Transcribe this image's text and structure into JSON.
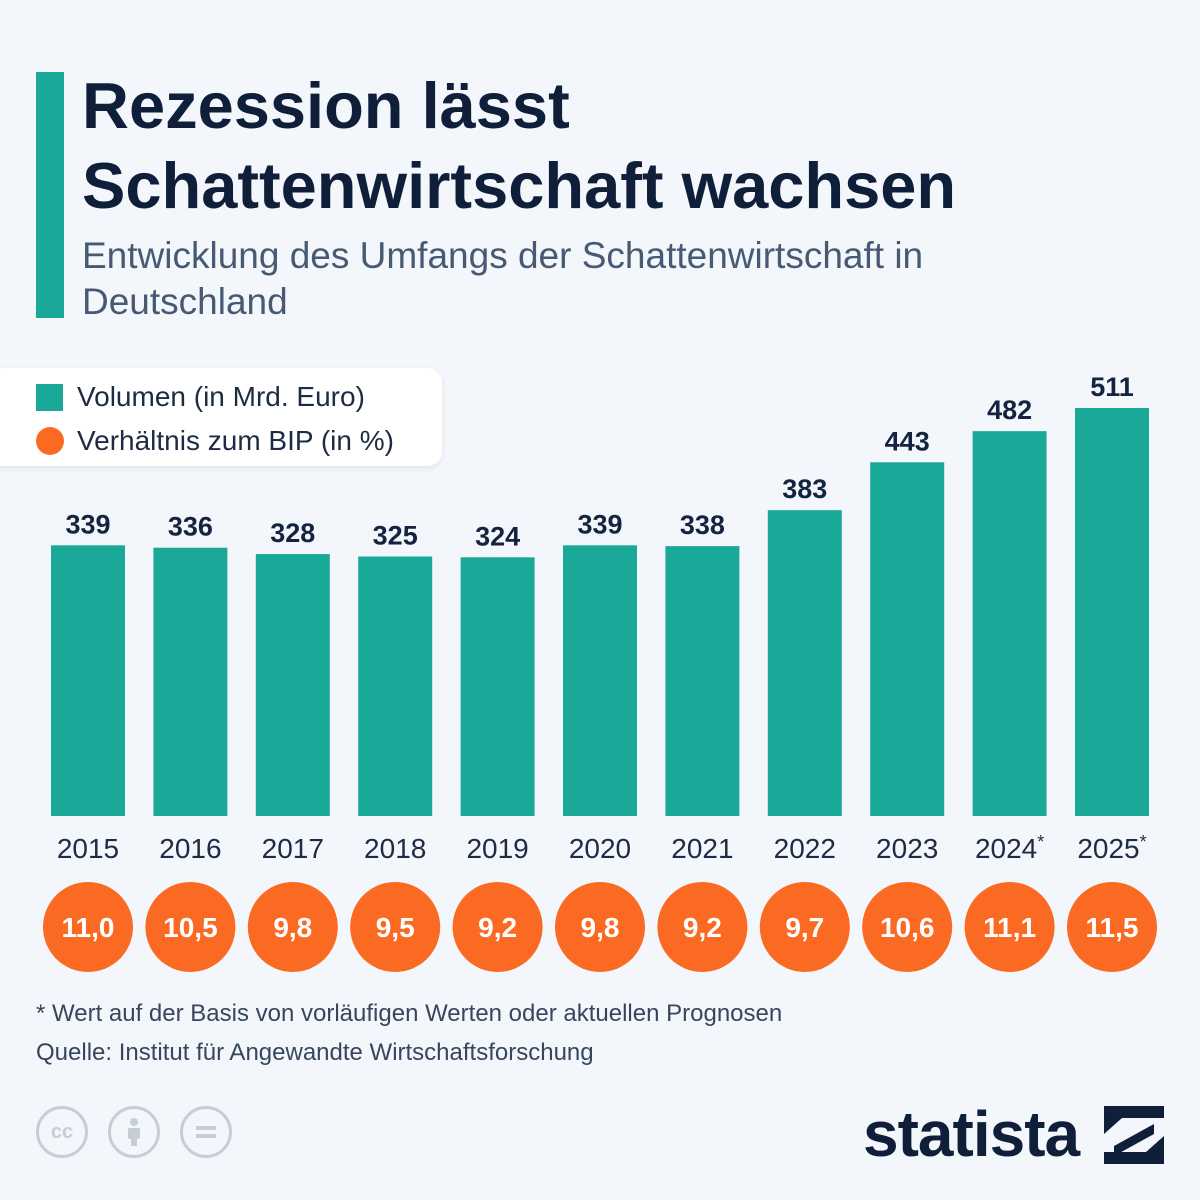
{
  "header": {
    "title": "Rezession lässt Schattenwirtschaft wachsen",
    "subtitle": "Entwicklung des Umfangs der Schattenwirtschaft in Deutschland"
  },
  "legend": {
    "volume": "Volumen (in Mrd. Euro)",
    "ratio": "Verhältnis zum BIP (in %)"
  },
  "chart_data": {
    "type": "bar",
    "categories": [
      "2015",
      "2016",
      "2017",
      "2018",
      "2019",
      "2020",
      "2021",
      "2022",
      "2023",
      "2024*",
      "2025*"
    ],
    "series": [
      {
        "name": "Volumen (in Mrd. Euro)",
        "values": [
          339,
          336,
          328,
          325,
          324,
          339,
          338,
          383,
          443,
          482,
          511
        ],
        "labels": [
          "339",
          "336",
          "328",
          "325",
          "324",
          "339",
          "338",
          "383",
          "443",
          "482",
          "511"
        ]
      },
      {
        "name": "Verhältnis zum BIP (in %)",
        "values": [
          11.0,
          10.5,
          9.8,
          9.5,
          9.2,
          9.8,
          9.2,
          9.7,
          10.6,
          11.1,
          11.5
        ],
        "labels": [
          "11,0",
          "10,5",
          "9,8",
          "9,5",
          "9,2",
          "9,8",
          "9,2",
          "9,7",
          "10,6",
          "11,1",
          "11,5"
        ]
      }
    ],
    "ylim": [
      0,
      511
    ],
    "grid": false,
    "legend": "top-left",
    "colors": {
      "bar": "#1aa898",
      "circle": "#fb6a22",
      "label": "#14233f"
    }
  },
  "footer": {
    "footnote": "* Wert auf der Basis von vorläufigen Werten oder aktuellen Prognosen",
    "source": "Quelle: Institut für Angewandte Wirtschaftsforschung",
    "brand": "statista",
    "license_icons": [
      "cc-icon",
      "attribution-icon",
      "no-derivatives-icon"
    ]
  }
}
